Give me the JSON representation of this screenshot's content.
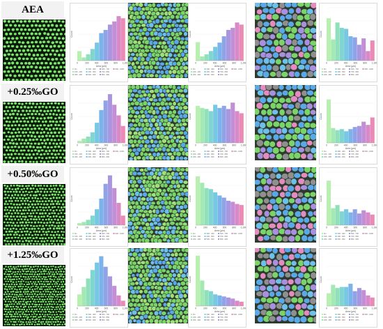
{
  "rows": [
    {
      "label": "AEA"
    },
    {
      "label": "+0.25‰GO"
    },
    {
      "label": "+0.50‰GO"
    },
    {
      "label": "+1.25‰GO"
    }
  ],
  "colors": {
    "bins": [
      "#b8f0b0",
      "#a4e9b4",
      "#90e0bc",
      "#7fd5d0",
      "#78c8e4",
      "#7ab4ea",
      "#8fa3e6",
      "#a896e0",
      "#c28ed6",
      "#d889c8",
      "#e98bb5"
    ],
    "micro_bg": "#0b1a0b",
    "pore": "#7be56a",
    "seg_bg": "#2f3a2f",
    "label_bg": "#f2f2f2"
  },
  "chart_data": [
    {
      "type": "bar",
      "row": 0,
      "col": 0,
      "xlabel": "Area (µm)",
      "ylabel": "Count",
      "xticks": [
        "0",
        "200",
        "400",
        "600",
        "800",
        "1,000"
      ],
      "legend": [
        "bin",
        "100 - 200",
        "200 - 300",
        "300 - 400",
        "400 - 500",
        "500 - 600",
        "600 - 700",
        "700 - 800",
        "800 - 900",
        "900 - 1000"
      ],
      "values": [
        18,
        6,
        12,
        22,
        34,
        52,
        58,
        68,
        74,
        84,
        80
      ]
    },
    {
      "type": "bar",
      "row": 0,
      "col": 1,
      "xlabel": "Area (µm)",
      "ylabel": "Count",
      "xticks": [
        "0",
        "200",
        "400",
        "600",
        "800",
        "1,000"
      ],
      "legend": [
        "bin",
        "100 - 200",
        "200 - 300",
        "300 - 400",
        "400 - 500",
        "500 - 600",
        "600 - 700",
        "700 - 800",
        "800 - 900",
        "900 - 1000"
      ],
      "values": [
        35,
        8,
        12,
        18,
        26,
        34,
        46,
        58,
        62,
        72,
        68
      ]
    },
    {
      "type": "bar",
      "row": 0,
      "col": 2,
      "xlabel": "Area (µm)",
      "ylabel": "Count",
      "xticks": [
        "0",
        "200",
        "400",
        "600",
        "800",
        "1,000"
      ],
      "legend": [
        "bin",
        "100 - 200",
        "200 - 300",
        "300 - 400",
        "400 - 500",
        "500 - 600",
        "600 - 700",
        "700 - 800",
        "800 - 900",
        "900 - 1000"
      ],
      "values": [
        80,
        40,
        72,
        62,
        60,
        46,
        44,
        30,
        42,
        18,
        38
      ]
    },
    {
      "type": "bar",
      "row": 1,
      "col": 0,
      "xlabel": "Area (µm)",
      "ylabel": "Count",
      "xticks": [
        "0",
        "200",
        "400",
        "600",
        "800",
        "1,000"
      ],
      "legend": [
        "bin",
        "100 - 200",
        "200 - 300",
        "300 - 400",
        "400 - 500",
        "500 - 600",
        "600 - 700",
        "700 - 800",
        "800 - 900",
        "900 - 1000"
      ],
      "values": [
        4,
        8,
        12,
        20,
        38,
        62,
        80,
        92,
        72,
        52,
        32
      ]
    },
    {
      "type": "bar",
      "row": 1,
      "col": 1,
      "xlabel": "Area (µm)",
      "ylabel": "Count",
      "xticks": [
        "0",
        "200",
        "400",
        "600",
        "800",
        "1,000"
      ],
      "legend": [
        "bin",
        "100 - 200",
        "200 - 300",
        "300 - 400",
        "400 - 500",
        "500 - 600",
        "600 - 700",
        "700 - 800",
        "800 - 900",
        "900 - 1000"
      ],
      "values": [
        70,
        66,
        64,
        60,
        72,
        66,
        70,
        64,
        76,
        60,
        56
      ]
    },
    {
      "type": "bar",
      "row": 1,
      "col": 2,
      "xlabel": "Area (µm)",
      "ylabel": "Count",
      "xticks": [
        "0",
        "200",
        "400",
        "600",
        "800",
        "1,000"
      ],
      "legend": [
        "bin",
        "100 - 200",
        "200 - 300",
        "300 - 400",
        "400 - 500",
        "500 - 600",
        "600 - 700",
        "700 - 800",
        "800 - 900",
        "900 - 1000"
      ],
      "values": [
        82,
        28,
        24,
        26,
        22,
        26,
        30,
        32,
        40,
        34,
        48
      ]
    },
    {
      "type": "bar",
      "row": 2,
      "col": 0,
      "xlabel": "Area (µm)",
      "ylabel": "Count",
      "xticks": [
        "0",
        "200",
        "400",
        "600",
        "800",
        "1,000"
      ],
      "legend": [
        "bin",
        "100 - 200",
        "200 - 300",
        "300 - 400",
        "400 - 500",
        "500 - 600",
        "600 - 700",
        "700 - 800",
        "800 - 900",
        "900 - 1000"
      ],
      "values": [
        4,
        6,
        10,
        18,
        30,
        50,
        78,
        94,
        70,
        42,
        18
      ]
    },
    {
      "type": "bar",
      "row": 2,
      "col": 1,
      "xlabel": "Area (µm)",
      "ylabel": "Count",
      "xticks": [
        "0",
        "200",
        "400",
        "600",
        "800",
        "1,000"
      ],
      "legend": [
        "bin",
        "100 - 200",
        "200 - 300",
        "300 - 400",
        "400 - 500",
        "500 - 600",
        "600 - 700",
        "700 - 800",
        "800 - 900",
        "900 - 1000"
      ],
      "values": [
        92,
        80,
        70,
        68,
        62,
        56,
        52,
        46,
        44,
        40,
        38
      ]
    },
    {
      "type": "bar",
      "row": 2,
      "col": 2,
      "xlabel": "Area (µm)",
      "ylabel": "Count",
      "xticks": [
        "0",
        "200",
        "400",
        "600",
        "800",
        "1,000"
      ],
      "legend": [
        "bin",
        "100 - 200",
        "200 - 300",
        "300 - 400",
        "400 - 500",
        "500 - 600",
        "600 - 700",
        "700 - 800",
        "800 - 900",
        "900 - 1000"
      ],
      "values": [
        84,
        32,
        38,
        26,
        30,
        24,
        30,
        22,
        28,
        24,
        20
      ]
    },
    {
      "type": "bar",
      "row": 3,
      "col": 0,
      "xlabel": "Area (µm)",
      "ylabel": "Count",
      "xticks": [
        "0",
        "200",
        "400",
        "600",
        "800",
        "1,000"
      ],
      "legend": [
        "bin",
        "100 - 200",
        "200 - 300",
        "300 - 400",
        "400 - 500",
        "500 - 600",
        "600 - 700",
        "700 - 800",
        "800 - 900",
        "900 - 1000"
      ],
      "values": [
        22,
        36,
        52,
        68,
        82,
        94,
        74,
        56,
        38,
        20,
        10
      ]
    },
    {
      "type": "bar",
      "row": 3,
      "col": 1,
      "xlabel": "Area (µm)",
      "ylabel": "Count",
      "xticks": [
        "0",
        "200",
        "400",
        "600",
        "800",
        "1,000"
      ],
      "legend": [
        "bin",
        "100 - 200",
        "200 - 300",
        "300 - 400",
        "400 - 500",
        "500 - 600",
        "600 - 700",
        "700 - 800",
        "800 - 900",
        "900 - 1000"
      ],
      "values": [
        95,
        48,
        30,
        28,
        22,
        20,
        18,
        16,
        14,
        10,
        8
      ]
    },
    {
      "type": "bar",
      "row": 3,
      "col": 2,
      "xlabel": "Area (µm)",
      "ylabel": "Count",
      "xticks": [
        "0",
        "200",
        "400",
        "600",
        "800",
        "1,000"
      ],
      "legend": [
        "bin",
        "100 - 200",
        "200 - 300",
        "300 - 400",
        "400 - 500",
        "500 - 600",
        "600 - 700",
        "700 - 800",
        "800 - 900",
        "900 - 1000"
      ],
      "values": [
        24,
        40,
        34,
        36,
        36,
        42,
        28,
        34,
        30,
        20,
        16
      ]
    }
  ]
}
